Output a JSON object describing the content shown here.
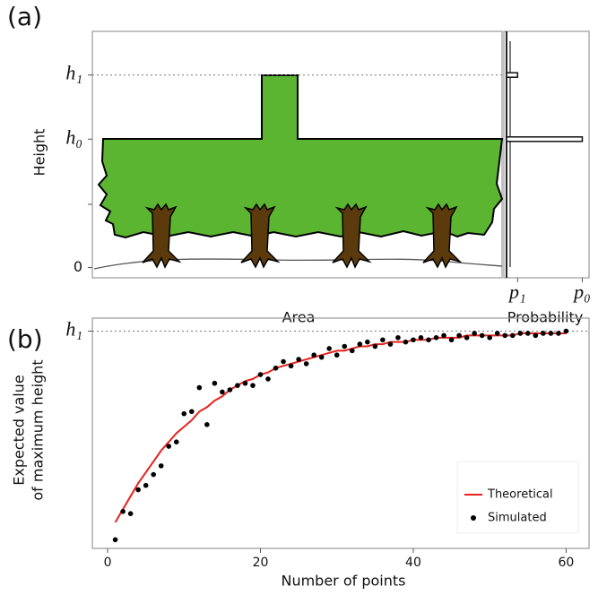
{
  "chart_data": [
    {
      "type": "canopy",
      "panel": "(a)",
      "x_label": "Area",
      "y_label": "Height",
      "prob_label": "Probability",
      "ylim": [
        -0.08,
        1.84
      ],
      "yticks": [
        0,
        {
          "value": 1,
          "label": "h₀"
        },
        {
          "value": 1.5,
          "label": "h₁"
        }
      ],
      "prob_xlim": [
        0,
        1
      ],
      "prob_xticks": [
        {
          "value": 0.14,
          "label": "p₁"
        },
        {
          "value": 0.96,
          "label": "p₀"
        }
      ],
      "prob_heights": [
        1,
        1.5
      ],
      "prob_values": [
        0.96,
        0.14
      ]
    },
    {
      "type": "line",
      "panel": "(b)",
      "x_label": "Number of points",
      "y_label": [
        "Expected  value",
        "of maximum height"
      ],
      "xlim": [
        -2,
        63
      ],
      "ylim": [
        0,
        1.06
      ],
      "xticks": [
        0,
        20,
        40,
        60
      ],
      "yticks": [
        {
          "value": 1,
          "label": "h₁"
        }
      ],
      "legend": "bottom-right",
      "x": [
        1,
        2,
        3,
        4,
        5,
        6,
        7,
        8,
        9,
        10,
        11,
        12,
        13,
        14,
        15,
        16,
        17,
        18,
        19,
        20,
        21,
        22,
        23,
        24,
        25,
        26,
        27,
        28,
        29,
        30,
        31,
        32,
        33,
        34,
        35,
        36,
        37,
        38,
        39,
        40,
        41,
        42,
        43,
        44,
        45,
        46,
        47,
        48,
        49,
        50,
        51,
        52,
        53,
        54,
        55,
        56,
        57,
        58,
        59,
        60
      ],
      "series": [
        {
          "name": "Theoretical",
          "color": "#e8211d",
          "style": "line",
          "values": [
            0.12,
            0.18,
            0.24,
            0.3,
            0.35,
            0.4,
            0.45,
            0.49,
            0.53,
            0.56,
            0.59,
            0.63,
            0.65,
            0.68,
            0.7,
            0.73,
            0.75,
            0.77,
            0.78,
            0.8,
            0.81,
            0.83,
            0.84,
            0.85,
            0.86,
            0.87,
            0.88,
            0.89,
            0.9,
            0.91,
            0.91,
            0.92,
            0.93,
            0.93,
            0.94,
            0.94,
            0.95,
            0.95,
            0.95,
            0.96,
            0.96,
            0.96,
            0.97,
            0.97,
            0.97,
            0.97,
            0.98,
            0.98,
            0.98,
            0.98,
            0.98,
            0.98,
            0.98,
            0.99,
            0.99,
            0.99,
            0.99,
            0.99,
            0.99,
            0.99
          ]
        },
        {
          "name": "Simulated",
          "color": "#000000",
          "style": "points",
          "values": [
            0.04,
            0.17,
            0.16,
            0.27,
            0.29,
            0.34,
            0.38,
            0.47,
            0.49,
            0.62,
            0.63,
            0.74,
            0.57,
            0.76,
            0.72,
            0.73,
            0.75,
            0.76,
            0.75,
            0.8,
            0.78,
            0.83,
            0.86,
            0.84,
            0.87,
            0.85,
            0.89,
            0.88,
            0.92,
            0.89,
            0.93,
            0.91,
            0.94,
            0.95,
            0.93,
            0.96,
            0.94,
            0.97,
            0.95,
            0.96,
            0.97,
            0.96,
            0.97,
            0.98,
            0.96,
            0.98,
            0.97,
            0.99,
            0.98,
            0.97,
            0.99,
            0.98,
            0.98,
            0.99,
            0.99,
            0.98,
            0.99,
            0.99,
            0.99,
            1.0
          ]
        }
      ]
    }
  ]
}
